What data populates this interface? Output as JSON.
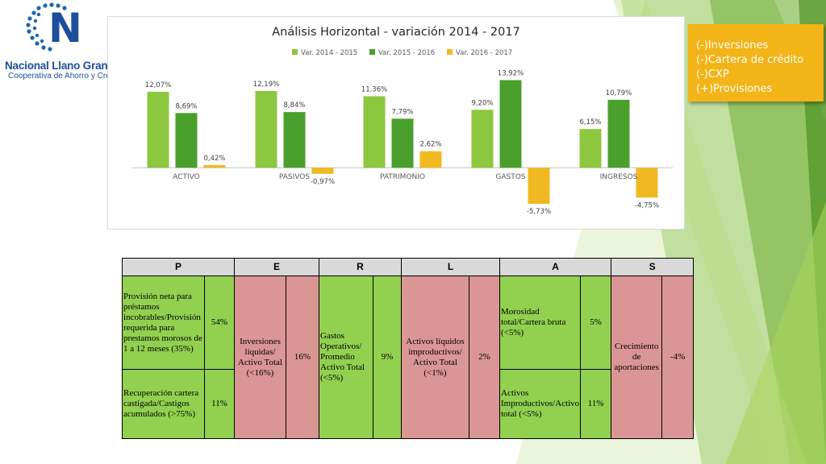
{
  "logo": {
    "letter": "N",
    "name": "Nacional Llano Grande Ltda",
    "subtitle": "Cooperativa de Ahorro y Crédito"
  },
  "colors": {
    "series1": "#8dc63f",
    "series2": "#4aa02c",
    "series3": "#f0b921",
    "callout_bg": "#f2b417",
    "green_cell": "#92d050",
    "red_cell": "#da9694",
    "header_cell": "#d9d9d9"
  },
  "callout": {
    "lines": [
      "(-)Inversiones",
      "(-)Cartera de crédito",
      "(-)CXP",
      "(+)Provisiones"
    ]
  },
  "chart_data": {
    "type": "bar",
    "title": "Análisis Horizontal - variación 2014 - 2017",
    "categories": [
      "ACTIVO",
      "PASIVOS",
      "PATRIMONIO",
      "GASTOS",
      "INGRESOS"
    ],
    "series": [
      {
        "name": "Var. 2014 - 2015",
        "values": [
          12.07,
          12.19,
          11.36,
          9.2,
          6.15
        ],
        "labels": [
          "12,07%",
          "12,19%",
          "11,36%",
          "9,20%",
          "6,15%"
        ]
      },
      {
        "name": "Var. 2015 - 2016",
        "values": [
          8.69,
          8.84,
          7.79,
          13.92,
          10.79
        ],
        "labels": [
          "8,69%",
          "8,84%",
          "7,79%",
          "13,92%",
          "10,79%"
        ]
      },
      {
        "name": "Var. 2016 - 2017",
        "values": [
          0.42,
          -0.97,
          2.62,
          -5.73,
          -4.75
        ],
        "labels": [
          "0,42%",
          "-0,97%",
          "2,62%",
          "-5,73%",
          "-4,75%"
        ]
      }
    ],
    "ylim": [
      -6.5,
      15
    ],
    "legend": "top",
    "grid": false,
    "xlabel": "",
    "ylabel": ""
  },
  "table": {
    "headers": [
      "P",
      "E",
      "R",
      "L",
      "A",
      "S"
    ],
    "p1": {
      "text": "Provisión neta para préstamos incobrables/Provisión requerida para prestamos morosos de 1 a 12 meses (35%)",
      "value": "54%"
    },
    "p2": {
      "text": "Recuperación cartera castigada/Castigos acumulados (>75%)",
      "value": "11%"
    },
    "e": {
      "text": "Inversiones liquidas/ Activo Total (<16%)",
      "value": "16%"
    },
    "r": {
      "text": "Gastos Operativos/ Promedio Activo Total (<5%)",
      "value": "9%"
    },
    "l": {
      "text": "Activos líquidos improductivos/ Activo Total (<1%)",
      "value": "2%"
    },
    "a1": {
      "text": "Morosidad total/Cartera bruta (<5%)",
      "value": "5%"
    },
    "a2": {
      "text": "Activos Improductivos/Activo total (<5%)",
      "value": "11%"
    },
    "s": {
      "text": "Crecimiento de aportaciones",
      "value": "-4%"
    }
  }
}
